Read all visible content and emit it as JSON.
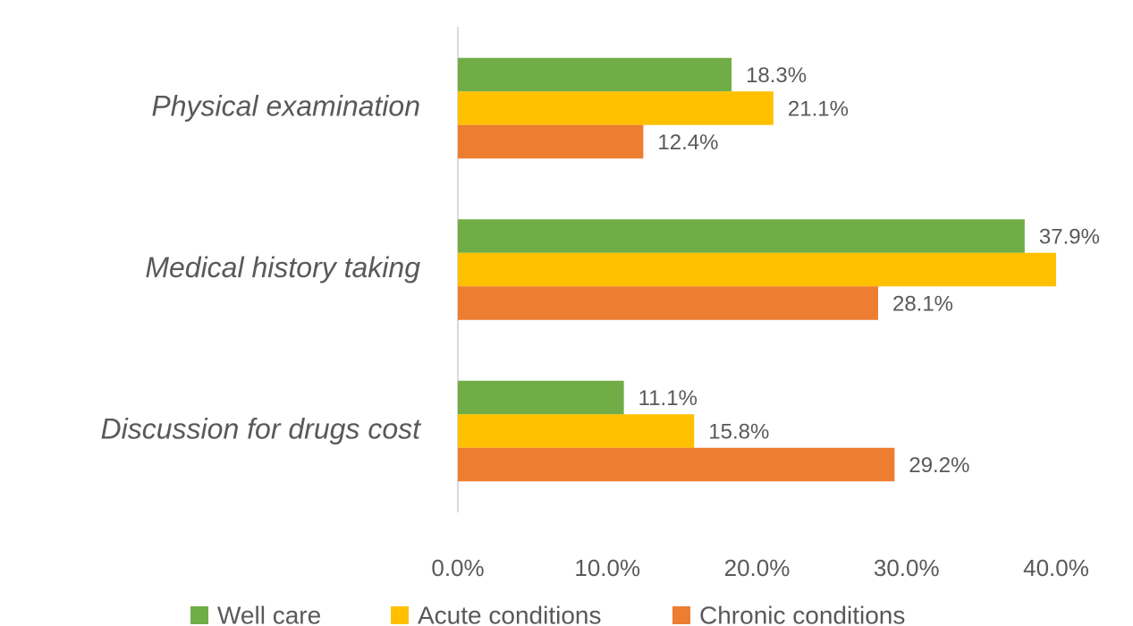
{
  "chart_data": {
    "type": "hbar",
    "categories": [
      "Physical examination",
      "Medical history taking",
      "Discussion for drugs cost"
    ],
    "series": [
      {
        "name": "Well care",
        "color": "#70ad47",
        "values": [
          18.3,
          37.9,
          11.1
        ],
        "value_labels": [
          "18.3%",
          "37.9%",
          "11.1%"
        ]
      },
      {
        "name": "Acute conditions",
        "color": "#ffc000",
        "values": [
          21.1,
          40.0,
          15.8
        ],
        "value_labels": [
          "21.1%",
          null,
          "15.8%"
        ]
      },
      {
        "name": "Chronic conditions",
        "color": "#ed7d31",
        "values": [
          12.4,
          28.1,
          29.2
        ],
        "value_labels": [
          "12.4%",
          "28.1%",
          "29.2%"
        ]
      }
    ],
    "xlim": [
      0,
      40
    ],
    "xticks": [
      {
        "value": 0,
        "label": "0.0%"
      },
      {
        "value": 10,
        "label": "10.0%"
      },
      {
        "value": 20,
        "label": "20.0%"
      },
      {
        "value": 30,
        "label": "30.0%"
      },
      {
        "value": 40,
        "label": "40.0%"
      }
    ],
    "legend": "bottom"
  }
}
